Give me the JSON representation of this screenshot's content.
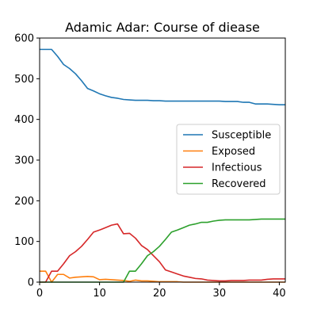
{
  "chart_data": {
    "type": "line",
    "title": "Adamic Adar: Course of diease",
    "xlabel": "",
    "ylabel": "",
    "xlim": [
      0,
      41
    ],
    "ylim": [
      0,
      600
    ],
    "xticks": [
      0,
      10,
      20,
      30,
      40
    ],
    "yticks": [
      0,
      100,
      200,
      300,
      400,
      500,
      600
    ],
    "legend_position": "center-right",
    "grid": false,
    "x": [
      0,
      1,
      2,
      3,
      4,
      5,
      6,
      7,
      8,
      9,
      10,
      11,
      12,
      13,
      14,
      15,
      16,
      17,
      18,
      19,
      20,
      21,
      22,
      23,
      24,
      25,
      26,
      27,
      28,
      29,
      30,
      31,
      32,
      33,
      34,
      35,
      36,
      37,
      38,
      39,
      40,
      41
    ],
    "series": [
      {
        "name": "Susceptible",
        "color": "#1f77b4",
        "values": [
          572,
          572,
          572,
          555,
          535,
          525,
          512,
          495,
          476,
          470,
          463,
          458,
          454,
          452,
          449,
          448,
          447,
          447,
          447,
          446,
          446,
          445,
          445,
          445,
          445,
          445,
          445,
          445,
          445,
          445,
          445,
          444,
          444,
          444,
          442,
          442,
          438,
          438,
          438,
          437,
          436,
          436
        ]
      },
      {
        "name": "Exposed",
        "color": "#ff7f0e",
        "values": [
          27,
          27,
          0,
          19,
          19,
          10,
          12,
          13,
          14,
          13,
          6,
          7,
          6,
          5,
          4,
          2,
          5,
          3,
          3,
          2,
          1,
          1,
          1,
          1,
          0,
          0,
          0,
          0,
          0,
          0,
          0,
          0,
          0,
          0,
          0,
          0,
          0,
          0,
          0,
          0,
          0,
          0
        ]
      },
      {
        "name": "Infectious",
        "color": "#d62728",
        "values": [
          0,
          0,
          27,
          27,
          45,
          65,
          75,
          88,
          105,
          123,
          128,
          134,
          140,
          143,
          119,
          120,
          108,
          90,
          80,
          65,
          50,
          30,
          25,
          20,
          15,
          12,
          9,
          8,
          5,
          4,
          3,
          3,
          4,
          4,
          4,
          5,
          5,
          5,
          7,
          8,
          8,
          8
        ]
      },
      {
        "name": "Recovered",
        "color": "#2ca02c",
        "values": [
          0,
          0,
          0,
          0,
          0,
          0,
          0,
          0,
          0,
          0,
          0,
          0,
          0,
          0,
          0,
          27,
          27,
          45,
          65,
          75,
          88,
          105,
          123,
          128,
          134,
          140,
          143,
          147,
          147,
          150,
          152,
          153,
          153,
          153,
          153,
          153,
          154,
          155,
          155,
          155,
          155,
          155
        ]
      }
    ]
  }
}
